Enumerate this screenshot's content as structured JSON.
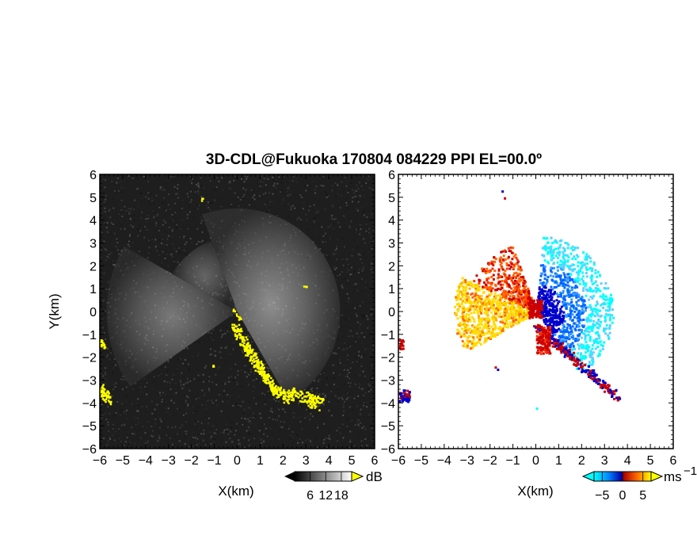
{
  "title": "3D-CDL@Fukuoka 170804 084229 PPI EL=00.0º",
  "colors": {
    "reflectivity_low": "#000000",
    "reflectivity_high": "#ffffff",
    "clutter": "#ffff00",
    "velocity_neg_strong": "#00ffff",
    "velocity_neg": "#0066ff",
    "velocity_neg_weak": "#0000cc",
    "velocity_pos_weak": "#cc0000",
    "velocity_pos": "#ff6600",
    "velocity_pos_strong": "#ffdd00"
  },
  "chart_data": [
    {
      "type": "heatmap",
      "panel": "left",
      "variable": "reflectivity",
      "xlabel": "X(km)",
      "ylabel": "Y(km)",
      "xlim": [
        -6,
        6
      ],
      "ylim": [
        -6,
        6
      ],
      "xticks": [
        "−6",
        "−5",
        "−4",
        "−3",
        "−2",
        "−1",
        "0",
        "1",
        "2",
        "3",
        "4",
        "5",
        "6"
      ],
      "yticks": [
        "−6",
        "−5",
        "−4",
        "−3",
        "−2",
        "−1",
        "0",
        "1",
        "2",
        "3",
        "4",
        "5",
        "6"
      ],
      "colorbar": {
        "unit": "dB",
        "ticks": [
          "6",
          "12",
          "18"
        ],
        "range": [
          0,
          22
        ]
      }
    },
    {
      "type": "heatmap",
      "panel": "right",
      "variable": "doppler velocity",
      "xlabel": "X(km)",
      "ylabel": "",
      "xlim": [
        -6,
        6
      ],
      "ylim": [
        -6,
        6
      ],
      "xticks": [
        "−6",
        "−5",
        "−4",
        "−3",
        "−2",
        "−1",
        "0",
        "1",
        "2",
        "3",
        "4",
        "5",
        "6"
      ],
      "yticks": [
        "−6",
        "−5",
        "−4",
        "−3",
        "−2",
        "−1",
        "0",
        "1",
        "2",
        "3",
        "4",
        "5",
        "6"
      ],
      "colorbar": {
        "unit": "ms",
        "unit_exponent": "−1",
        "ticks": [
          "−5",
          "0",
          "5"
        ],
        "range": [
          -7,
          7
        ]
      }
    }
  ]
}
